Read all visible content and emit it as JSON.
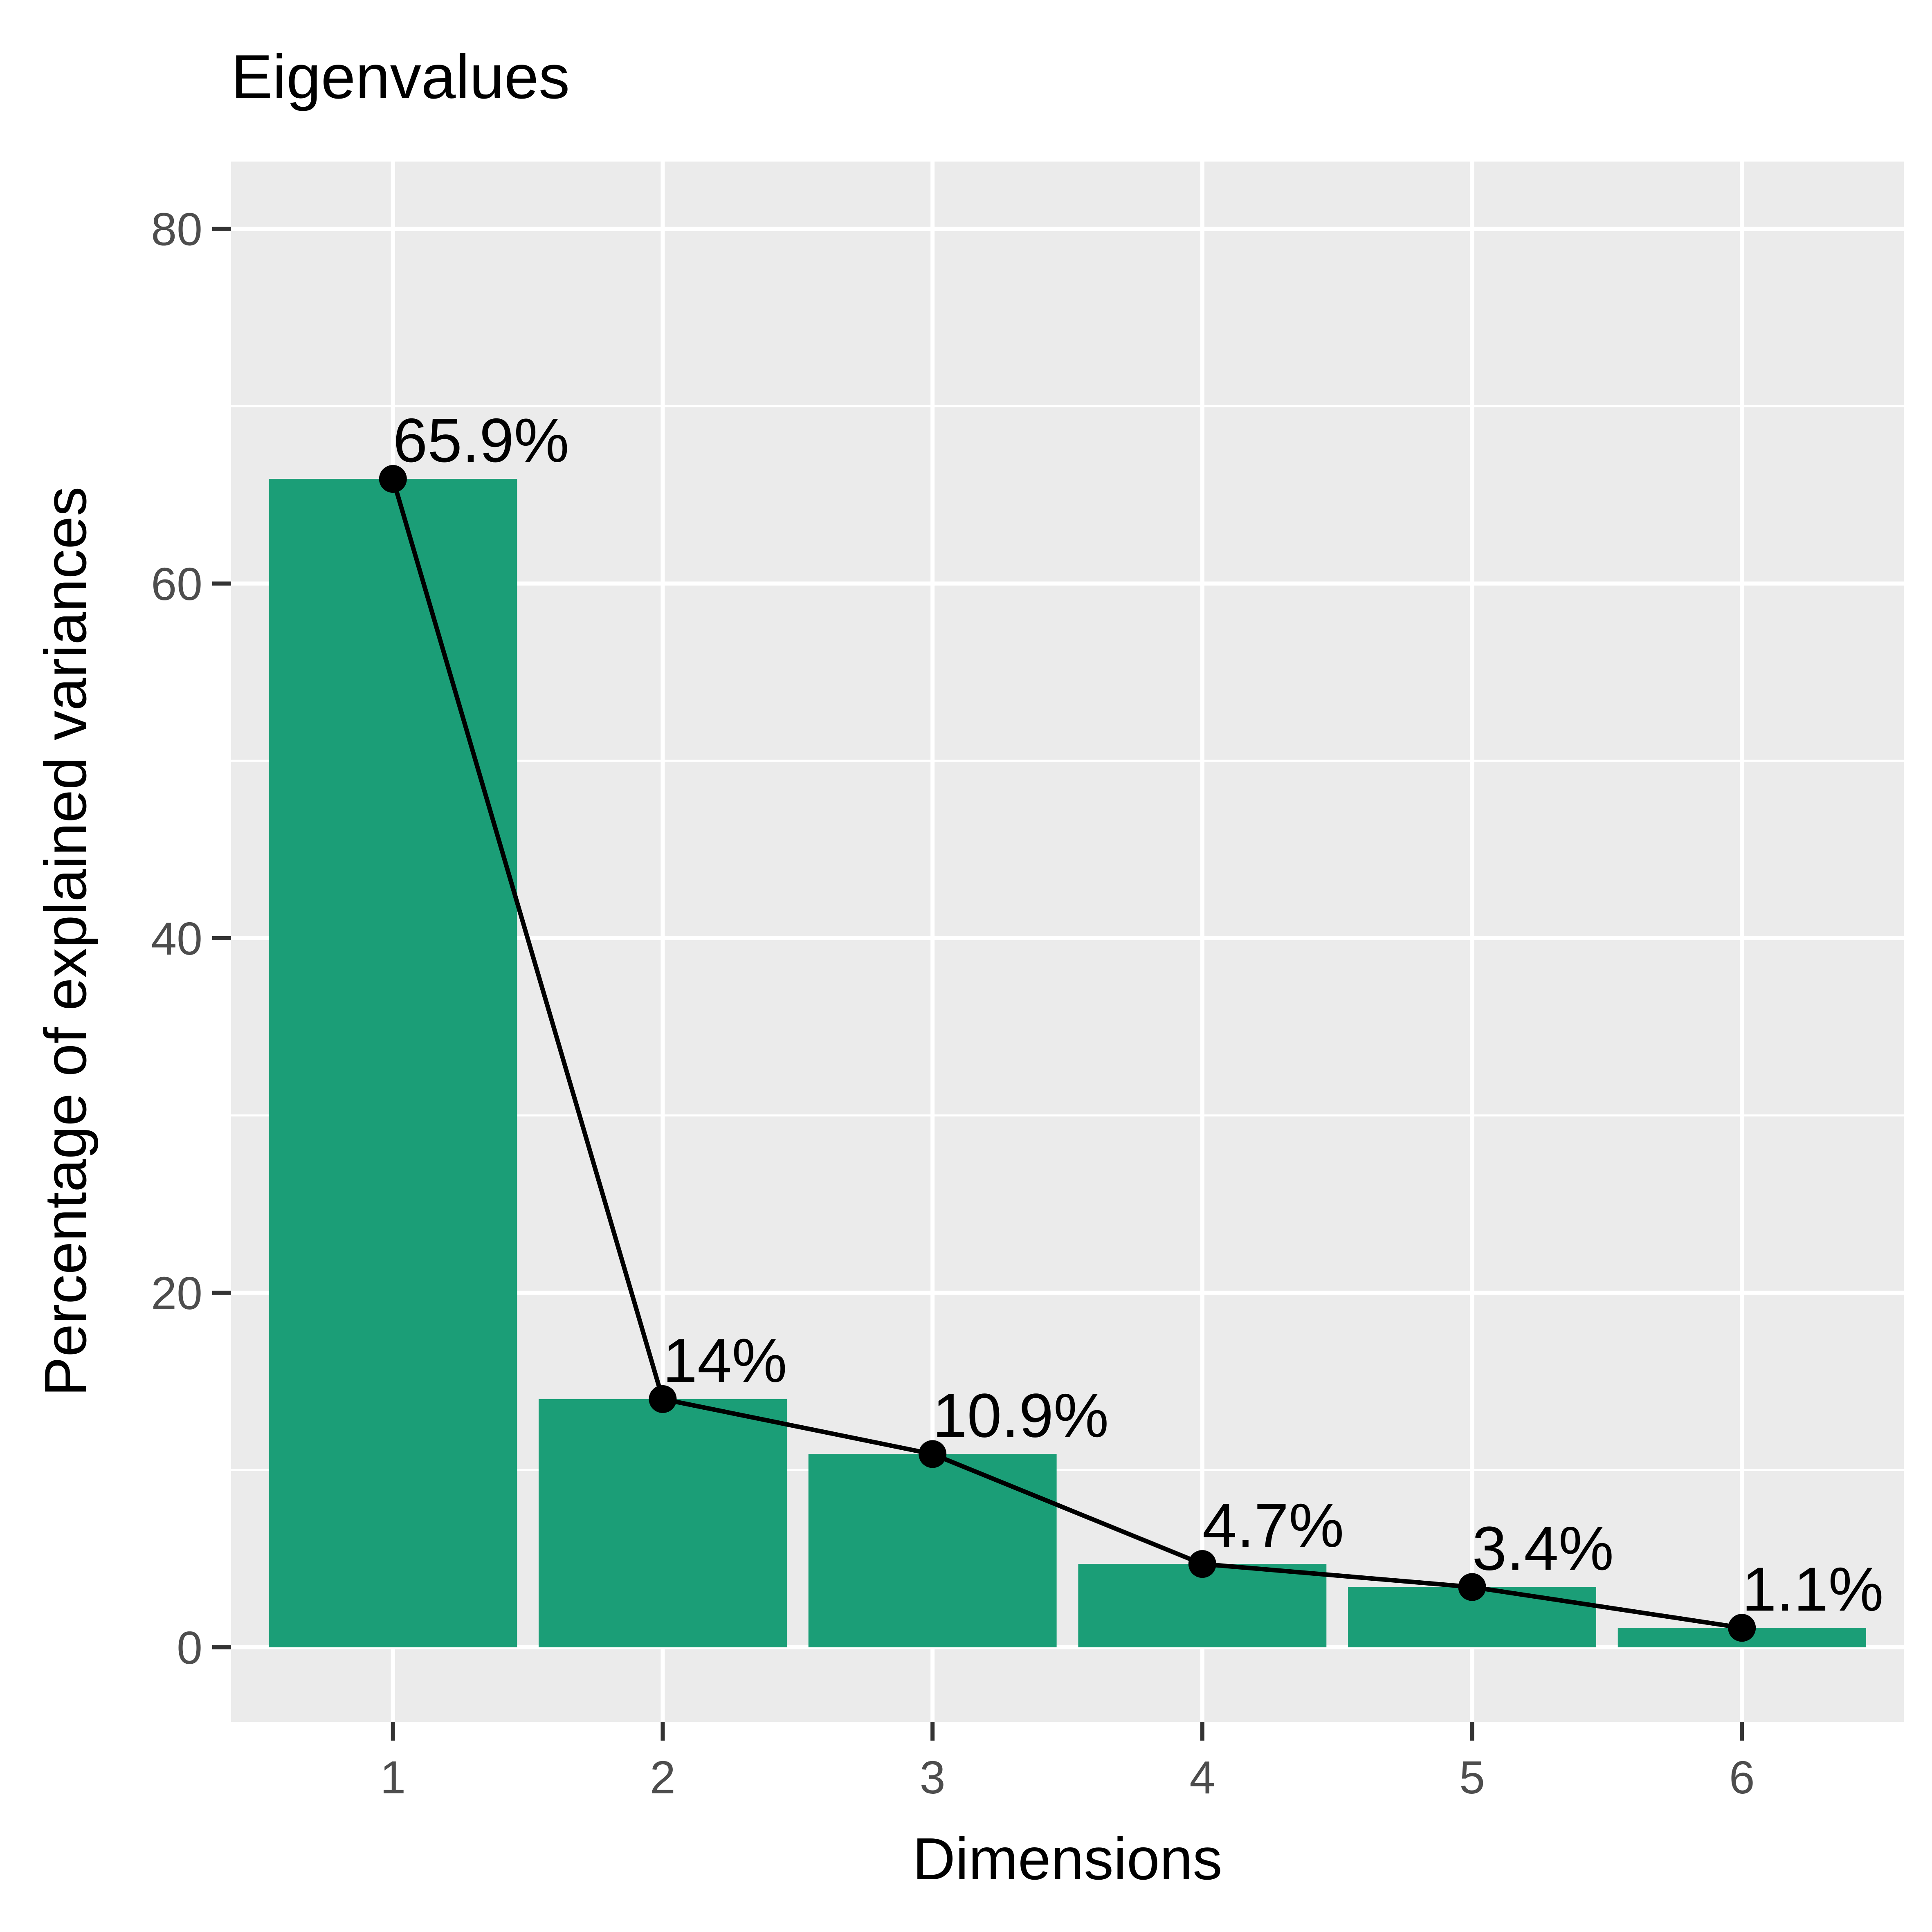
{
  "chart_data": {
    "type": "bar",
    "title": "Eigenvalues",
    "xlabel": "Dimensions",
    "ylabel": "Percentage of explained variances",
    "categories": [
      "1",
      "2",
      "3",
      "4",
      "5",
      "6"
    ],
    "values": [
      65.9,
      14.0,
      10.9,
      4.7,
      3.4,
      1.1
    ],
    "labels": [
      "65.9%",
      "14%",
      "10.9%",
      "4.7%",
      "3.4%",
      "1.1%"
    ],
    "ylim": [
      -4.2,
      83.8
    ],
    "yticks": [
      0,
      20,
      40,
      60,
      80
    ],
    "ytick_labels": [
      "0",
      "20",
      "40",
      "60",
      "80"
    ],
    "grid": true,
    "legend": "none",
    "overlay": "line-with-points",
    "colors": {
      "bar": "#1b9e77",
      "line": "#000000",
      "panel": "#ebebeb",
      "grid": "#ffffff",
      "tick_text": "#4d4d4d"
    }
  }
}
